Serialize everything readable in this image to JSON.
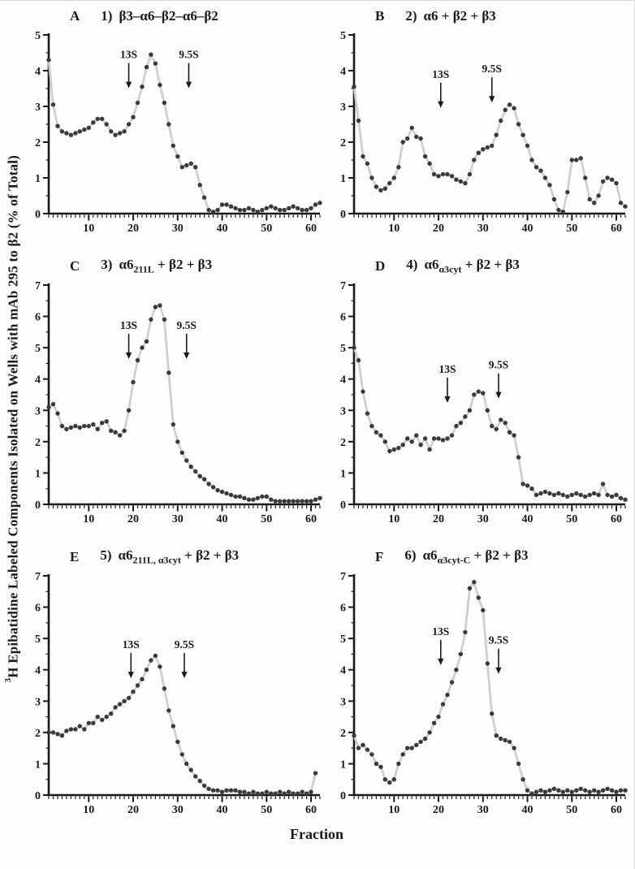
{
  "figure": {
    "y_label_sup": "3",
    "y_label_main": "H Epibatidine Labeled Components Isolated on Wells with mAb 295 to β2 (% of Total)",
    "x_axis_label": "Fraction"
  },
  "chart_data": [
    {
      "type": "scatter",
      "panel_letter": "A",
      "title_prefix": "1)",
      "title_segments": [
        {
          "t": "β3–α6–β2–α6–β2"
        }
      ],
      "xlim": [
        1,
        62
      ],
      "ylim": [
        0,
        5
      ],
      "xticks": [
        10,
        20,
        30,
        40,
        50,
        60
      ],
      "yticks": [
        0,
        1,
        2,
        3,
        4,
        5
      ],
      "xlabel": "",
      "ylabel": "",
      "annotations": [
        {
          "label": "13S",
          "x": 19,
          "ly": 0.13
        },
        {
          "label": "9.5S",
          "x": 32.5,
          "ly": 0.13
        }
      ],
      "x_start": 1,
      "values": [
        4.3,
        3.05,
        2.45,
        2.3,
        2.25,
        2.2,
        2.25,
        2.3,
        2.35,
        2.4,
        2.55,
        2.65,
        2.65,
        2.5,
        2.3,
        2.2,
        2.25,
        2.3,
        2.5,
        2.7,
        3.1,
        3.55,
        4.1,
        4.45,
        4.2,
        3.6,
        3.1,
        2.5,
        1.9,
        1.6,
        1.3,
        1.35,
        1.4,
        1.3,
        0.8,
        0.45,
        0.1,
        0.05,
        0.1,
        0.25,
        0.25,
        0.2,
        0.15,
        0.1,
        0.1,
        0.15,
        0.1,
        0.05,
        0.1,
        0.15,
        0.2,
        0.15,
        0.1,
        0.1,
        0.15,
        0.2,
        0.15,
        0.1,
        0.1,
        0.15,
        0.25,
        0.3
      ]
    },
    {
      "type": "scatter",
      "panel_letter": "B",
      "title_prefix": "2)",
      "title_segments": [
        {
          "t": "α6 + β2 + β3"
        }
      ],
      "xlim": [
        1,
        62
      ],
      "ylim": [
        0,
        5
      ],
      "xticks": [
        10,
        20,
        30,
        40,
        50,
        60
      ],
      "yticks": [
        0,
        1,
        2,
        3,
        4,
        5
      ],
      "xlabel": "",
      "ylabel": "",
      "annotations": [
        {
          "label": "13S",
          "x": 20.5,
          "ly": 0.24
        },
        {
          "label": "9.5S",
          "x": 32,
          "ly": 0.21
        }
      ],
      "x_start": 1,
      "values": [
        3.55,
        2.6,
        1.6,
        1.4,
        1.0,
        0.75,
        0.65,
        0.7,
        0.85,
        1.0,
        1.3,
        2.0,
        2.1,
        2.4,
        2.15,
        2.1,
        1.6,
        1.4,
        1.1,
        1.05,
        1.1,
        1.1,
        1.05,
        0.95,
        0.9,
        0.85,
        1.1,
        1.5,
        1.7,
        1.8,
        1.85,
        1.9,
        2.2,
        2.6,
        2.9,
        3.05,
        2.95,
        2.5,
        2.2,
        1.9,
        1.5,
        1.3,
        1.2,
        1.0,
        0.8,
        0.4,
        0.1,
        0.05,
        0.6,
        1.5,
        1.5,
        1.55,
        1.0,
        0.4,
        0.3,
        0.5,
        0.9,
        1.0,
        0.95,
        0.85,
        0.3,
        0.2
      ]
    },
    {
      "type": "scatter",
      "panel_letter": "C",
      "title_prefix": "3)",
      "title_segments": [
        {
          "t": "α6"
        },
        {
          "t": "211L",
          "sub": true
        },
        {
          "t": " + β2 + β3"
        }
      ],
      "xlim": [
        1,
        62
      ],
      "ylim": [
        0,
        7
      ],
      "xticks": [
        10,
        20,
        30,
        40,
        50,
        60
      ],
      "yticks": [
        0,
        1,
        2,
        3,
        4,
        5,
        6,
        7
      ],
      "xlabel": "",
      "ylabel": "",
      "annotations": [
        {
          "label": "13S",
          "x": 19,
          "ly": 0.2
        },
        {
          "label": "9.5S",
          "x": 32,
          "ly": 0.2
        }
      ],
      "x_start": 1,
      "values": [
        3.1,
        3.2,
        2.9,
        2.5,
        2.4,
        2.45,
        2.5,
        2.45,
        2.5,
        2.5,
        2.55,
        2.4,
        2.6,
        2.65,
        2.35,
        2.3,
        2.2,
        2.35,
        3.0,
        3.9,
        4.6,
        5.0,
        5.2,
        5.9,
        6.3,
        6.35,
        5.9,
        4.2,
        2.55,
        2.0,
        1.65,
        1.4,
        1.2,
        1.05,
        0.9,
        0.8,
        0.65,
        0.55,
        0.45,
        0.4,
        0.35,
        0.3,
        0.25,
        0.25,
        0.2,
        0.15,
        0.15,
        0.2,
        0.25,
        0.25,
        0.15,
        0.1,
        0.1,
        0.1,
        0.1,
        0.1,
        0.1,
        0.1,
        0.1,
        0.1,
        0.15,
        0.2
      ]
    },
    {
      "type": "scatter",
      "panel_letter": "D",
      "title_prefix": "4)",
      "title_segments": [
        {
          "t": "α6"
        },
        {
          "t": "α3cyt",
          "sub": true
        },
        {
          "t": " + β2 + β3"
        }
      ],
      "xlim": [
        1,
        62
      ],
      "ylim": [
        0,
        7
      ],
      "xticks": [
        10,
        20,
        30,
        40,
        50,
        60
      ],
      "yticks": [
        0,
        1,
        2,
        3,
        4,
        5,
        6,
        7
      ],
      "xlabel": "",
      "ylabel": "",
      "annotations": [
        {
          "label": "13S",
          "x": 22,
          "ly": 0.4
        },
        {
          "label": "9.5S",
          "x": 33.5,
          "ly": 0.38
        }
      ],
      "x_start": 1,
      "values": [
        5.0,
        4.6,
        3.6,
        2.9,
        2.5,
        2.3,
        2.2,
        2.0,
        1.7,
        1.75,
        1.8,
        1.9,
        2.1,
        2.0,
        2.2,
        1.9,
        2.1,
        1.75,
        2.1,
        2.1,
        2.05,
        2.1,
        2.2,
        2.5,
        2.6,
        2.8,
        3.0,
        3.5,
        3.6,
        3.55,
        3.0,
        2.5,
        2.4,
        2.7,
        2.6,
        2.3,
        2.2,
        1.5,
        0.65,
        0.6,
        0.5,
        0.3,
        0.35,
        0.4,
        0.35,
        0.3,
        0.35,
        0.3,
        0.25,
        0.3,
        0.35,
        0.3,
        0.25,
        0.3,
        0.35,
        0.3,
        0.65,
        0.3,
        0.25,
        0.3,
        0.2,
        0.15
      ]
    },
    {
      "type": "scatter",
      "panel_letter": "E",
      "title_prefix": "5)",
      "title_segments": [
        {
          "t": "α6"
        },
        {
          "t": "211L, α3cyt",
          "sub": true
        },
        {
          "t": " + β2 + β3"
        }
      ],
      "xlim": [
        1,
        62
      ],
      "ylim": [
        0,
        7
      ],
      "xticks": [
        10,
        20,
        30,
        40,
        50,
        60
      ],
      "yticks": [
        0,
        1,
        2,
        3,
        4,
        5,
        6,
        7
      ],
      "xlabel": "",
      "ylabel": "",
      "annotations": [
        {
          "label": "13S",
          "x": 19.5,
          "ly": 0.33
        },
        {
          "label": "9.5S",
          "x": 31.5,
          "ly": 0.33
        }
      ],
      "x_start": 1,
      "values": [
        2.0,
        2.0,
        1.95,
        1.9,
        2.05,
        2.1,
        2.1,
        2.2,
        2.1,
        2.3,
        2.3,
        2.5,
        2.4,
        2.5,
        2.6,
        2.8,
        2.9,
        3.0,
        3.1,
        3.3,
        3.5,
        3.7,
        4.0,
        4.3,
        4.45,
        4.1,
        3.4,
        2.7,
        2.2,
        1.7,
        1.3,
        1.0,
        0.8,
        0.6,
        0.45,
        0.3,
        0.2,
        0.15,
        0.15,
        0.1,
        0.15,
        0.15,
        0.15,
        0.1,
        0.1,
        0.05,
        0.1,
        0.05,
        0.05,
        0.1,
        0.05,
        0.05,
        0.1,
        0.05,
        0.1,
        0.05,
        0.05,
        0.1,
        0.05,
        0.1,
        0.7
      ]
    },
    {
      "type": "scatter",
      "panel_letter": "F",
      "title_prefix": "6)",
      "title_segments": [
        {
          "t": "α6"
        },
        {
          "t": "α3cyt-C",
          "sub": true
        },
        {
          "t": " + β2 + β3"
        }
      ],
      "xlim": [
        1,
        62
      ],
      "ylim": [
        0,
        7
      ],
      "xticks": [
        10,
        20,
        30,
        40,
        50,
        60
      ],
      "yticks": [
        0,
        1,
        2,
        3,
        4,
        5,
        6,
        7
      ],
      "xlabel": "",
      "ylabel": "",
      "annotations": [
        {
          "label": "13S",
          "x": 20.5,
          "ly": 0.27
        },
        {
          "label": "9.5S",
          "x": 33.5,
          "ly": 0.31
        }
      ],
      "x_start": 1,
      "values": [
        1.9,
        1.5,
        1.6,
        1.45,
        1.3,
        1.0,
        0.9,
        0.5,
        0.4,
        0.5,
        1.0,
        1.3,
        1.5,
        1.5,
        1.6,
        1.7,
        1.8,
        2.0,
        2.3,
        2.5,
        2.9,
        3.2,
        3.6,
        4.0,
        4.5,
        5.2,
        6.6,
        6.8,
        6.3,
        5.9,
        4.2,
        2.6,
        1.9,
        1.8,
        1.75,
        1.7,
        1.5,
        1.0,
        0.5,
        0.15,
        0.05,
        0.1,
        0.15,
        0.1,
        0.15,
        0.2,
        0.15,
        0.1,
        0.15,
        0.1,
        0.15,
        0.2,
        0.15,
        0.1,
        0.15,
        0.1,
        0.15,
        0.2,
        0.15,
        0.1,
        0.15,
        0.15
      ]
    }
  ],
  "style": {
    "point_color": "#3a3a3a",
    "line_color": "#d0d0cb",
    "axis_color": "#1a1a1a"
  }
}
